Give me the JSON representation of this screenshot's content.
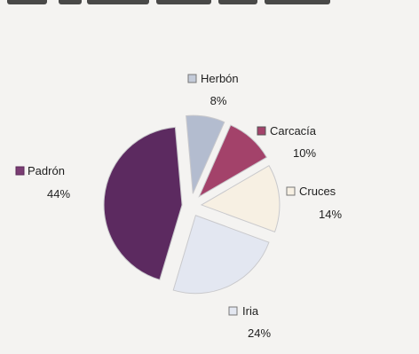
{
  "chart_data": {
    "type": "pie",
    "title": "",
    "slices": [
      {
        "label": "Herbón",
        "percent": "8%",
        "value": 8,
        "color": "#b3bccf",
        "legend_fill": "#c4cbd9"
      },
      {
        "label": "Carcacía",
        "percent": "10%",
        "value": 10,
        "color": "#a3426a",
        "legend_fill": "#a3426a"
      },
      {
        "label": "Cruces",
        "percent": "14%",
        "value": 14,
        "color": "#f7f0e3",
        "legend_fill": "#f7f0e3"
      },
      {
        "label": "Iria",
        "percent": "24%",
        "value": 24,
        "color": "#e3e7f1",
        "legend_fill": "#e3e7f1"
      },
      {
        "label": "Padrón",
        "percent": "44%",
        "value": 44,
        "color": "#5c2a60",
        "legend_fill": "#7b3c73"
      }
    ],
    "legend_placement": "labels around slices"
  }
}
